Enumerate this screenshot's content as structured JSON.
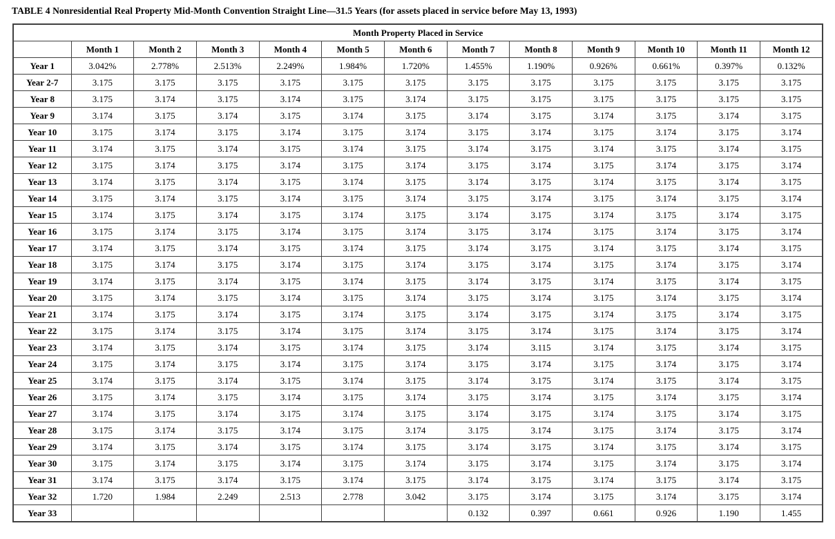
{
  "title": "TABLE 4 Nonresidential Real Property Mid-Month Convention Straight Line—31.5 Years (for assets placed in service before May 13, 1993)",
  "colors": {
    "border": "#404040",
    "text": "#000000",
    "background": "#ffffff"
  },
  "table": {
    "spanning_header": "Month Property Placed in Service",
    "corner_header": "",
    "month_headers": [
      "Month 1",
      "Month 2",
      "Month 3",
      "Month 4",
      "Month 5",
      "Month 6",
      "Month 7",
      "Month 8",
      "Month 9",
      "Month 10",
      "Month 11",
      "Month 12"
    ],
    "rows": [
      {
        "label": "Year 1",
        "values": [
          "3.042%",
          "2.778%",
          "2.513%",
          "2.249%",
          "1.984%",
          "1.720%",
          "1.455%",
          "1.190%",
          "0.926%",
          "0.661%",
          "0.397%",
          "0.132%"
        ]
      },
      {
        "label": "Year 2-7",
        "values": [
          "3.175",
          "3.175",
          "3.175",
          "3.175",
          "3.175",
          "3.175",
          "3.175",
          "3.175",
          "3.175",
          "3.175",
          "3.175",
          "3.175"
        ]
      },
      {
        "label": "Year 8",
        "values": [
          "3.175",
          "3.174",
          "3.175",
          "3.174",
          "3.175",
          "3.174",
          "3.175",
          "3.175",
          "3.175",
          "3.175",
          "3.175",
          "3.175"
        ]
      },
      {
        "label": "Year 9",
        "values": [
          "3.174",
          "3.175",
          "3.174",
          "3.175",
          "3.174",
          "3.175",
          "3.174",
          "3.175",
          "3.174",
          "3.175",
          "3.174",
          "3.175"
        ]
      },
      {
        "label": "Year 10",
        "values": [
          "3.175",
          "3.174",
          "3.175",
          "3.174",
          "3.175",
          "3.174",
          "3.175",
          "3.174",
          "3.175",
          "3.174",
          "3.175",
          "3.174"
        ]
      },
      {
        "label": "Year 11",
        "values": [
          "3.174",
          "3.175",
          "3.174",
          "3.175",
          "3.174",
          "3.175",
          "3.174",
          "3.175",
          "3.174",
          "3.175",
          "3.174",
          "3.175"
        ]
      },
      {
        "label": "Year 12",
        "values": [
          "3.175",
          "3.174",
          "3.175",
          "3.174",
          "3.175",
          "3.174",
          "3.175",
          "3.174",
          "3.175",
          "3.174",
          "3.175",
          "3.174"
        ]
      },
      {
        "label": "Year 13",
        "values": [
          "3.174",
          "3.175",
          "3.174",
          "3.175",
          "3.174",
          "3.175",
          "3.174",
          "3.175",
          "3.174",
          "3.175",
          "3.174",
          "3.175"
        ]
      },
      {
        "label": "Year 14",
        "values": [
          "3.175",
          "3.174",
          "3.175",
          "3.174",
          "3.175",
          "3.174",
          "3.175",
          "3.174",
          "3.175",
          "3.174",
          "3.175",
          "3.174"
        ]
      },
      {
        "label": "Year 15",
        "values": [
          "3.174",
          "3.175",
          "3.174",
          "3.175",
          "3.174",
          "3.175",
          "3.174",
          "3.175",
          "3.174",
          "3.175",
          "3.174",
          "3.175"
        ]
      },
      {
        "label": "Year 16",
        "values": [
          "3.175",
          "3.174",
          "3.175",
          "3.174",
          "3.175",
          "3.174",
          "3.175",
          "3.174",
          "3.175",
          "3.174",
          "3.175",
          "3.174"
        ]
      },
      {
        "label": "Year 17",
        "values": [
          "3.174",
          "3.175",
          "3.174",
          "3.175",
          "3.174",
          "3.175",
          "3.174",
          "3.175",
          "3.174",
          "3.175",
          "3.174",
          "3.175"
        ]
      },
      {
        "label": "Year 18",
        "values": [
          "3.175",
          "3.174",
          "3.175",
          "3.174",
          "3.175",
          "3.174",
          "3.175",
          "3.174",
          "3.175",
          "3.174",
          "3.175",
          "3.174"
        ]
      },
      {
        "label": "Year 19",
        "values": [
          "3.174",
          "3.175",
          "3.174",
          "3.175",
          "3.174",
          "3.175",
          "3.174",
          "3.175",
          "3.174",
          "3.175",
          "3.174",
          "3.175"
        ]
      },
      {
        "label": "Year 20",
        "values": [
          "3.175",
          "3.174",
          "3.175",
          "3.174",
          "3.175",
          "3.174",
          "3.175",
          "3.174",
          "3.175",
          "3.174",
          "3.175",
          "3.174"
        ]
      },
      {
        "label": "Year 21",
        "values": [
          "3.174",
          "3.175",
          "3.174",
          "3.175",
          "3.174",
          "3.175",
          "3.174",
          "3.175",
          "3.174",
          "3.175",
          "3.174",
          "3.175"
        ]
      },
      {
        "label": "Year 22",
        "values": [
          "3.175",
          "3.174",
          "3.175",
          "3.174",
          "3.175",
          "3.174",
          "3.175",
          "3.174",
          "3.175",
          "3.174",
          "3.175",
          "3.174"
        ]
      },
      {
        "label": "Year 23",
        "values": [
          "3.174",
          "3.175",
          "3.174",
          "3.175",
          "3.174",
          "3.175",
          "3.174",
          "3.115",
          "3.174",
          "3.175",
          "3.174",
          "3.175"
        ]
      },
      {
        "label": "Year 24",
        "values": [
          "3.175",
          "3.174",
          "3.175",
          "3.174",
          "3.175",
          "3.174",
          "3.175",
          "3.174",
          "3.175",
          "3.174",
          "3.175",
          "3.174"
        ]
      },
      {
        "label": "Year 25",
        "values": [
          "3.174",
          "3.175",
          "3.174",
          "3.175",
          "3.174",
          "3.175",
          "3.174",
          "3.175",
          "3.174",
          "3.175",
          "3.174",
          "3.175"
        ]
      },
      {
        "label": "Year 26",
        "values": [
          "3.175",
          "3.174",
          "3.175",
          "3.174",
          "3.175",
          "3.174",
          "3.175",
          "3.174",
          "3.175",
          "3.174",
          "3.175",
          "3.174"
        ]
      },
      {
        "label": "Year 27",
        "values": [
          "3.174",
          "3.175",
          "3.174",
          "3.175",
          "3.174",
          "3.175",
          "3.174",
          "3.175",
          "3.174",
          "3.175",
          "3.174",
          "3.175"
        ]
      },
      {
        "label": "Year 28",
        "values": [
          "3.175",
          "3.174",
          "3.175",
          "3.174",
          "3.175",
          "3.174",
          "3.175",
          "3.174",
          "3.175",
          "3.174",
          "3.175",
          "3.174"
        ]
      },
      {
        "label": "Year 29",
        "values": [
          "3.174",
          "3.175",
          "3.174",
          "3.175",
          "3.174",
          "3.175",
          "3.174",
          "3.175",
          "3.174",
          "3.175",
          "3.174",
          "3.175"
        ]
      },
      {
        "label": "Year 30",
        "values": [
          "3.175",
          "3.174",
          "3.175",
          "3.174",
          "3.175",
          "3.174",
          "3.175",
          "3.174",
          "3.175",
          "3.174",
          "3.175",
          "3.174"
        ]
      },
      {
        "label": "Year 31",
        "values": [
          "3.174",
          "3.175",
          "3.174",
          "3.175",
          "3.174",
          "3.175",
          "3.174",
          "3.175",
          "3.174",
          "3.175",
          "3.174",
          "3.175"
        ]
      },
      {
        "label": "Year 32",
        "values": [
          "1.720",
          "1.984",
          "2.249",
          "2.513",
          "2.778",
          "3.042",
          "3.175",
          "3.174",
          "3.175",
          "3.174",
          "3.175",
          "3.174"
        ]
      },
      {
        "label": "Year 33",
        "values": [
          "",
          "",
          "",
          "",
          "",
          "",
          "0.132",
          "0.397",
          "0.661",
          "0.926",
          "1.190",
          "1.455"
        ]
      }
    ]
  }
}
